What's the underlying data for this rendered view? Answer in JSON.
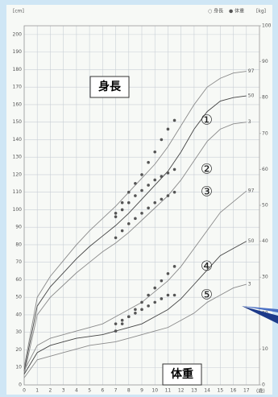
{
  "chart_data": {
    "type": "line",
    "height_label": "身長",
    "weight_label": "体重",
    "y_unit": "[cm]",
    "y2_unit": "[kg]",
    "x_unit": "(歳)",
    "legend": [
      "○ 身長",
      "● 体重"
    ],
    "xlim": [
      0,
      18
    ],
    "xticks": [
      0,
      1,
      2,
      3,
      4,
      5,
      6,
      7,
      8,
      9,
      10,
      11,
      12,
      13,
      14,
      15,
      16,
      17
    ],
    "ylim": [
      0,
      205
    ],
    "yticks": [
      0,
      10,
      20,
      30,
      40,
      50,
      60,
      70,
      80,
      90,
      100,
      110,
      120,
      130,
      140,
      150,
      160,
      170,
      180,
      190,
      200
    ],
    "y2lim": [
      0,
      100
    ],
    "y2ticks": [
      0,
      10,
      20,
      30,
      40,
      50,
      60,
      70,
      80,
      90,
      100
    ],
    "grid": true,
    "series": [
      {
        "name": "97",
        "axis": "y",
        "style": "line",
        "color": "#8a8a8a",
        "x": [
          0,
          1,
          2,
          3,
          4,
          5,
          6,
          7,
          8,
          9,
          10,
          11,
          12,
          13,
          14,
          15,
          16,
          17
        ],
        "values": [
          10,
          50,
          62,
          71,
          80,
          88,
          95,
          102,
          110,
          118,
          126,
          136,
          148,
          160,
          170,
          175,
          178,
          179
        ]
      },
      {
        "name": "50",
        "axis": "y",
        "style": "line",
        "color": "#444444",
        "x": [
          0,
          1,
          2,
          3,
          4,
          5,
          6,
          7,
          8,
          9,
          10,
          11,
          12,
          13,
          14,
          15,
          16,
          17
        ],
        "values": [
          8,
          45,
          56,
          64,
          72,
          79,
          85,
          91,
          98,
          106,
          114,
          122,
          133,
          146,
          156,
          162,
          164,
          165
        ]
      },
      {
        "name": "3",
        "axis": "y",
        "style": "line",
        "color": "#8a8a8a",
        "x": [
          0,
          1,
          2,
          3,
          4,
          5,
          6,
          7,
          8,
          9,
          10,
          11,
          12,
          13,
          14,
          15,
          16,
          17
        ],
        "values": [
          6,
          40,
          50,
          57,
          64,
          70,
          76,
          81,
          87,
          94,
          101,
          108,
          117,
          128,
          139,
          146,
          149,
          150
        ]
      },
      {
        "name": "97",
        "axis": "y2",
        "style": "line",
        "color": "#8a8a8a",
        "x": [
          0,
          1,
          2,
          3,
          4,
          5,
          6,
          7,
          8,
          9,
          10,
          11,
          12,
          13,
          14,
          15,
          16,
          17
        ],
        "values": [
          4,
          11,
          13,
          14,
          15,
          16,
          17,
          19,
          21,
          23,
          26,
          29,
          33,
          38,
          43,
          48,
          51,
          54
        ]
      },
      {
        "name": "50",
        "axis": "y2",
        "style": "line",
        "color": "#444444",
        "x": [
          0,
          1,
          2,
          3,
          4,
          5,
          6,
          7,
          8,
          9,
          10,
          11,
          12,
          13,
          14,
          15,
          16,
          17
        ],
        "values": [
          3,
          9,
          11,
          12,
          13,
          13.5,
          14,
          15,
          16,
          17,
          19,
          21,
          24,
          28,
          32,
          36,
          38,
          40
        ]
      },
      {
        "name": "3",
        "axis": "y2",
        "style": "line",
        "color": "#8a8a8a",
        "x": [
          0,
          1,
          2,
          3,
          4,
          5,
          6,
          7,
          8,
          9,
          10,
          11,
          12,
          13,
          14,
          15,
          16,
          17
        ],
        "values": [
          2,
          7,
          8,
          9,
          10,
          11,
          11.5,
          12,
          13,
          14,
          15,
          16,
          18,
          20,
          23,
          25,
          27,
          28
        ]
      },
      {
        "name": "①",
        "axis": "y",
        "style": "points",
        "color": "#555555",
        "x": [
          7,
          7.5,
          8,
          8.5,
          9,
          9.5,
          10,
          10.5,
          11,
          11.5
        ],
        "values": [
          98,
          104,
          110,
          115,
          120,
          127,
          133,
          140,
          146,
          151
        ]
      },
      {
        "name": "②",
        "axis": "y",
        "style": "points",
        "color": "#555555",
        "x": [
          7,
          7.5,
          8,
          8.5,
          9,
          9.5,
          10,
          10.5,
          11,
          11.5
        ],
        "values": [
          96,
          100,
          104,
          108,
          111,
          114,
          117,
          119,
          121,
          123
        ]
      },
      {
        "name": "③",
        "axis": "y",
        "style": "points",
        "color": "#555555",
        "x": [
          7,
          7.5,
          8,
          8.5,
          9,
          9.5,
          10,
          10.5,
          11,
          11.5
        ],
        "values": [
          84,
          88,
          92,
          95,
          98,
          101,
          104,
          106,
          108,
          110
        ]
      },
      {
        "name": "④",
        "axis": "y2",
        "style": "points",
        "color": "#555555",
        "x": [
          7,
          7.5,
          8,
          8.5,
          9,
          9.5,
          10,
          10.5,
          11,
          11.5
        ],
        "values": [
          15,
          17,
          19,
          21,
          23,
          25,
          27,
          29,
          31,
          33
        ]
      },
      {
        "name": "⑤",
        "axis": "y2",
        "style": "points",
        "color": "#555555",
        "x": [
          7,
          7.5,
          8,
          8.5,
          9,
          9.5,
          10,
          10.5,
          11,
          11.5
        ],
        "values": [
          17,
          18,
          19,
          20,
          21,
          22,
          23,
          24,
          25,
          25
        ]
      }
    ]
  }
}
